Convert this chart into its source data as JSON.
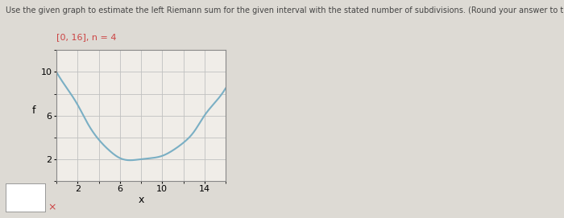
{
  "title_text": "Use the given graph to estimate the left Riemann sum for the given interval with the stated number of subdivisions. (Round your answer to the nearest integer.)",
  "subtitle_text": "[0, 16], n = 4",
  "x_label": "x",
  "y_label": "f",
  "xlim": [
    0,
    16
  ],
  "ylim": [
    0,
    12
  ],
  "xticks": [
    2,
    6,
    10,
    14
  ],
  "yticks": [
    2,
    6,
    10
  ],
  "curve_color": "#7aafc4",
  "curve_linewidth": 1.5,
  "grid_color": "#c0c0c0",
  "grid_linewidth": 0.6,
  "plot_bg_color": "#f0ede8",
  "fig_bg_color": "#dddad4",
  "title_fontsize": 7,
  "subtitle_fontsize": 8,
  "axis_label_fontsize": 9,
  "tick_fontsize": 8,
  "curve_x": [
    0,
    1,
    2,
    3,
    4,
    5,
    6,
    7,
    8,
    9,
    10,
    11,
    12,
    13,
    14,
    15,
    16
  ],
  "curve_y": [
    10.0,
    8.5,
    7.0,
    5.2,
    3.8,
    2.8,
    2.1,
    1.9,
    2.0,
    2.1,
    2.3,
    2.8,
    3.5,
    4.5,
    6.0,
    7.2,
    8.5
  ]
}
